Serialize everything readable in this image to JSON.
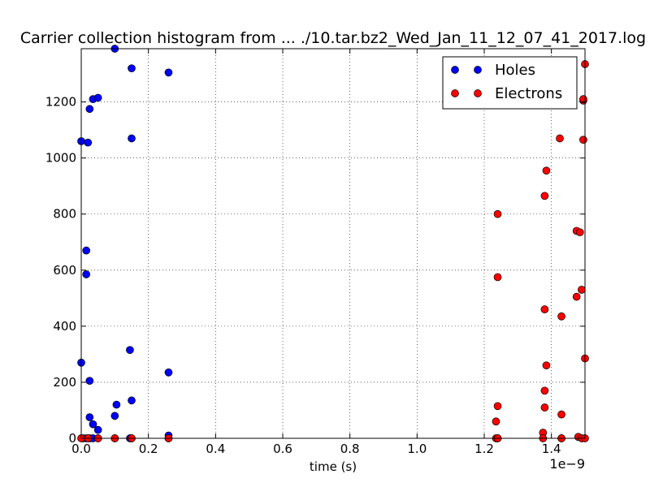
{
  "chart_data": {
    "type": "scatter",
    "title": "Carrier collection histogram from ... ./10.tar.bz2_Wed_Jan_11_12_07_41_2017.log",
    "xlabel": "time (s)",
    "ylabel": "",
    "x_multiplier_label": "1e−9",
    "xlim": [
      0.0,
      1.5
    ],
    "ylim": [
      0,
      1390
    ],
    "x_ticks": [
      0.0,
      0.2,
      0.4,
      0.6,
      0.8,
      1.0,
      1.2,
      1.4
    ],
    "x_tick_labels": [
      "0.0",
      "0.2",
      "0.4",
      "0.6",
      "0.8",
      "1.0",
      "1.2",
      "1.4"
    ],
    "y_ticks": [
      0,
      200,
      400,
      600,
      800,
      1000,
      1200
    ],
    "y_tick_labels": [
      "0",
      "200",
      "400",
      "600",
      "800",
      "1000",
      "1200"
    ],
    "grid": true,
    "legend_position": "top-right",
    "series": [
      {
        "name": "Holes",
        "color": "#0000ff",
        "points": [
          [
            0.0,
            270
          ],
          [
            0.0,
            1060
          ],
          [
            0.015,
            670
          ],
          [
            0.015,
            585
          ],
          [
            0.02,
            1055
          ],
          [
            0.025,
            1175
          ],
          [
            0.025,
            75
          ],
          [
            0.025,
            205
          ],
          [
            0.035,
            1210
          ],
          [
            0.035,
            50
          ],
          [
            0.05,
            1215
          ],
          [
            0.05,
            30
          ],
          [
            0.1,
            1390
          ],
          [
            0.1,
            80
          ],
          [
            0.105,
            120
          ],
          [
            0.145,
            315
          ],
          [
            0.15,
            1320
          ],
          [
            0.15,
            1070
          ],
          [
            0.15,
            135
          ],
          [
            0.26,
            1305
          ],
          [
            0.26,
            235
          ],
          [
            0.26,
            10
          ],
          [
            0.005,
            0
          ],
          [
            0.015,
            0
          ],
          [
            0.025,
            0
          ],
          [
            0.035,
            0
          ],
          [
            0.05,
            0
          ],
          [
            0.1,
            0
          ],
          [
            0.145,
            0
          ],
          [
            0.15,
            0
          ],
          [
            0.26,
            0
          ],
          [
            1.24,
            0
          ],
          [
            1.43,
            0
          ]
        ]
      },
      {
        "name": "Electrons",
        "color": "#ff0000",
        "points": [
          [
            0.0,
            0
          ],
          [
            0.02,
            0
          ],
          [
            0.05,
            0
          ],
          [
            0.1,
            0
          ],
          [
            0.15,
            0
          ],
          [
            0.26,
            0
          ],
          [
            1.235,
            60
          ],
          [
            1.235,
            0
          ],
          [
            1.24,
            800
          ],
          [
            1.24,
            575
          ],
          [
            1.24,
            115
          ],
          [
            1.24,
            0
          ],
          [
            1.375,
            20
          ],
          [
            1.375,
            0
          ],
          [
            1.38,
            865
          ],
          [
            1.38,
            460
          ],
          [
            1.38,
            170
          ],
          [
            1.38,
            110
          ],
          [
            1.385,
            955
          ],
          [
            1.385,
            260
          ],
          [
            1.425,
            1070
          ],
          [
            1.43,
            435
          ],
          [
            1.43,
            85
          ],
          [
            1.43,
            0
          ],
          [
            1.475,
            740
          ],
          [
            1.475,
            505
          ],
          [
            1.48,
            5
          ],
          [
            1.485,
            735
          ],
          [
            1.49,
            530
          ],
          [
            1.49,
            0
          ],
          [
            1.495,
            1205
          ],
          [
            1.495,
            1210
          ],
          [
            1.495,
            1065
          ],
          [
            1.5,
            1335
          ],
          [
            1.5,
            285
          ],
          [
            1.5,
            0
          ]
        ]
      }
    ]
  }
}
